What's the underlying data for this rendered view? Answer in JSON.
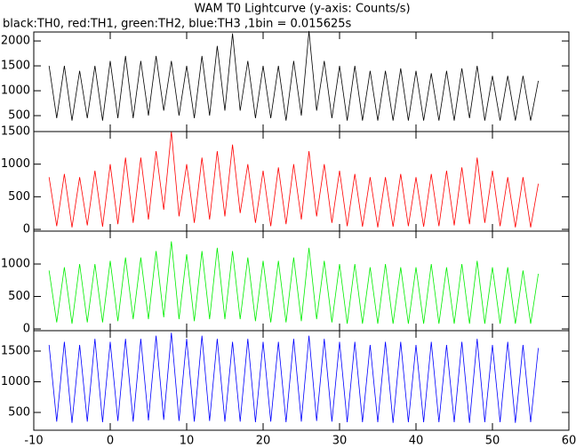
{
  "chart_data": [
    {
      "type": "line",
      "title": "WAM T0 Lightcurve (y-axis: Counts/s)",
      "subtitle": "black:TH0, red:TH1, green:TH2, blue:TH3 ,1bin = 0.015625s",
      "x": [
        -8,
        -7,
        -6,
        -5,
        -4,
        -3,
        -2,
        -1,
        0,
        1,
        2,
        3,
        4,
        5,
        6,
        7,
        8,
        9,
        10,
        11,
        12,
        13,
        14,
        15,
        16,
        17,
        18,
        19,
        20,
        21,
        22,
        23,
        24,
        25,
        26,
        27,
        28,
        29,
        30,
        31,
        32,
        33,
        34,
        35,
        36,
        37,
        38,
        39,
        40,
        41,
        42,
        43,
        44,
        45,
        46,
        47,
        48,
        49,
        50,
        51,
        52,
        53,
        54,
        55,
        56
      ],
      "series": [
        {
          "color": "#000000",
          "values": [
            1500,
            450,
            1500,
            400,
            1400,
            450,
            1500,
            400,
            1600,
            450,
            1700,
            450,
            1600,
            500,
            1700,
            600,
            1600,
            500,
            1500,
            450,
            1700,
            500,
            1900,
            600,
            2150,
            600,
            1600,
            450,
            1500,
            450,
            1500,
            400,
            1600,
            500,
            2200,
            600,
            1600,
            450,
            1500,
            400,
            1500,
            400,
            1400,
            400,
            1400,
            400,
            1450,
            400,
            1400,
            400,
            1350,
            400,
            1400,
            400,
            1450,
            450,
            1500,
            400,
            1300,
            400,
            1300,
            400,
            1300,
            400,
            1200
          ]
        }
      ],
      "ylim": [
        180,
        2180
      ],
      "yticks": [
        500,
        1000,
        1500,
        2000
      ]
    },
    {
      "type": "line",
      "x": [
        -8,
        -7,
        -6,
        -5,
        -4,
        -3,
        -2,
        -1,
        0,
        1,
        2,
        3,
        4,
        5,
        6,
        7,
        8,
        9,
        10,
        11,
        12,
        13,
        14,
        15,
        16,
        17,
        18,
        19,
        20,
        21,
        22,
        23,
        24,
        25,
        26,
        27,
        28,
        29,
        30,
        31,
        32,
        33,
        34,
        35,
        36,
        37,
        38,
        39,
        40,
        41,
        42,
        43,
        44,
        45,
        46,
        47,
        48,
        49,
        50,
        51,
        52,
        53,
        54,
        55,
        56
      ],
      "series": [
        {
          "color": "#ff0000",
          "values": [
            800,
            50,
            850,
            30,
            800,
            60,
            900,
            40,
            1000,
            80,
            1100,
            100,
            1100,
            150,
            1200,
            300,
            1500,
            200,
            1000,
            100,
            1100,
            150,
            1200,
            200,
            1300,
            250,
            1000,
            100,
            900,
            50,
            950,
            80,
            1000,
            150,
            1200,
            200,
            1000,
            100,
            900,
            50,
            850,
            40,
            800,
            30,
            800,
            40,
            850,
            50,
            800,
            40,
            850,
            50,
            900,
            60,
            950,
            80,
            1100,
            100,
            900,
            50,
            800,
            30,
            800,
            30,
            700
          ]
        }
      ],
      "ylim": [
        -27,
        1500
      ],
      "yticks": [
        0,
        500,
        1000,
        1500
      ]
    },
    {
      "type": "line",
      "x": [
        -8,
        -7,
        -6,
        -5,
        -4,
        -3,
        -2,
        -1,
        0,
        1,
        2,
        3,
        4,
        5,
        6,
        7,
        8,
        9,
        10,
        11,
        12,
        13,
        14,
        15,
        16,
        17,
        18,
        19,
        20,
        21,
        22,
        23,
        24,
        25,
        26,
        27,
        28,
        29,
        30,
        31,
        32,
        33,
        34,
        35,
        36,
        37,
        38,
        39,
        40,
        41,
        42,
        43,
        44,
        45,
        46,
        47,
        48,
        49,
        50,
        51,
        52,
        53,
        54,
        55,
        56
      ],
      "series": [
        {
          "color": "#00ee00",
          "values": [
            900,
            100,
            950,
            80,
            1000,
            100,
            1000,
            100,
            1050,
            120,
            1100,
            150,
            1100,
            150,
            1200,
            180,
            1350,
            150,
            1150,
            120,
            1200,
            150,
            1250,
            150,
            1200,
            150,
            1100,
            120,
            1050,
            100,
            1050,
            100,
            1100,
            120,
            1250,
            150,
            1050,
            100,
            1000,
            80,
            1000,
            80,
            950,
            80,
            1000,
            80,
            950,
            80,
            950,
            80,
            1000,
            80,
            950,
            80,
            1000,
            80,
            1050,
            80,
            950,
            80,
            950,
            80,
            900,
            80,
            850
          ]
        }
      ],
      "ylim": [
        -27,
        1507
      ],
      "yticks": [
        0,
        500,
        1000
      ]
    },
    {
      "type": "line",
      "x": [
        -8,
        -7,
        -6,
        -5,
        -4,
        -3,
        -2,
        -1,
        0,
        1,
        2,
        3,
        4,
        5,
        6,
        7,
        8,
        9,
        10,
        11,
        12,
        13,
        14,
        15,
        16,
        17,
        18,
        19,
        20,
        21,
        22,
        23,
        24,
        25,
        26,
        27,
        28,
        29,
        30,
        31,
        32,
        33,
        34,
        35,
        36,
        37,
        38,
        39,
        40,
        41,
        42,
        43,
        44,
        45,
        46,
        47,
        48,
        49,
        50,
        51,
        52,
        53,
        54,
        55,
        56
      ],
      "series": [
        {
          "color": "#0000ff",
          "values": [
            1600,
            350,
            1650,
            330,
            1600,
            350,
            1700,
            340,
            1650,
            360,
            1700,
            350,
            1700,
            370,
            1750,
            380,
            1800,
            360,
            1700,
            350,
            1750,
            360,
            1700,
            350,
            1650,
            350,
            1700,
            340,
            1650,
            350,
            1650,
            340,
            1700,
            350,
            1750,
            360,
            1700,
            350,
            1650,
            340,
            1650,
            340,
            1600,
            340,
            1650,
            330,
            1650,
            340,
            1600,
            340,
            1650,
            340,
            1600,
            340,
            1650,
            330,
            1700,
            340,
            1600,
            340,
            1650,
            330,
            1600,
            340,
            1550
          ]
        }
      ],
      "ylim": [
        210,
        1833
      ],
      "yticks": [
        500,
        1000,
        1500
      ],
      "xlim": [
        -10,
        60
      ],
      "xticks": [
        -10,
        0,
        10,
        20,
        30,
        40,
        50,
        60
      ]
    }
  ]
}
